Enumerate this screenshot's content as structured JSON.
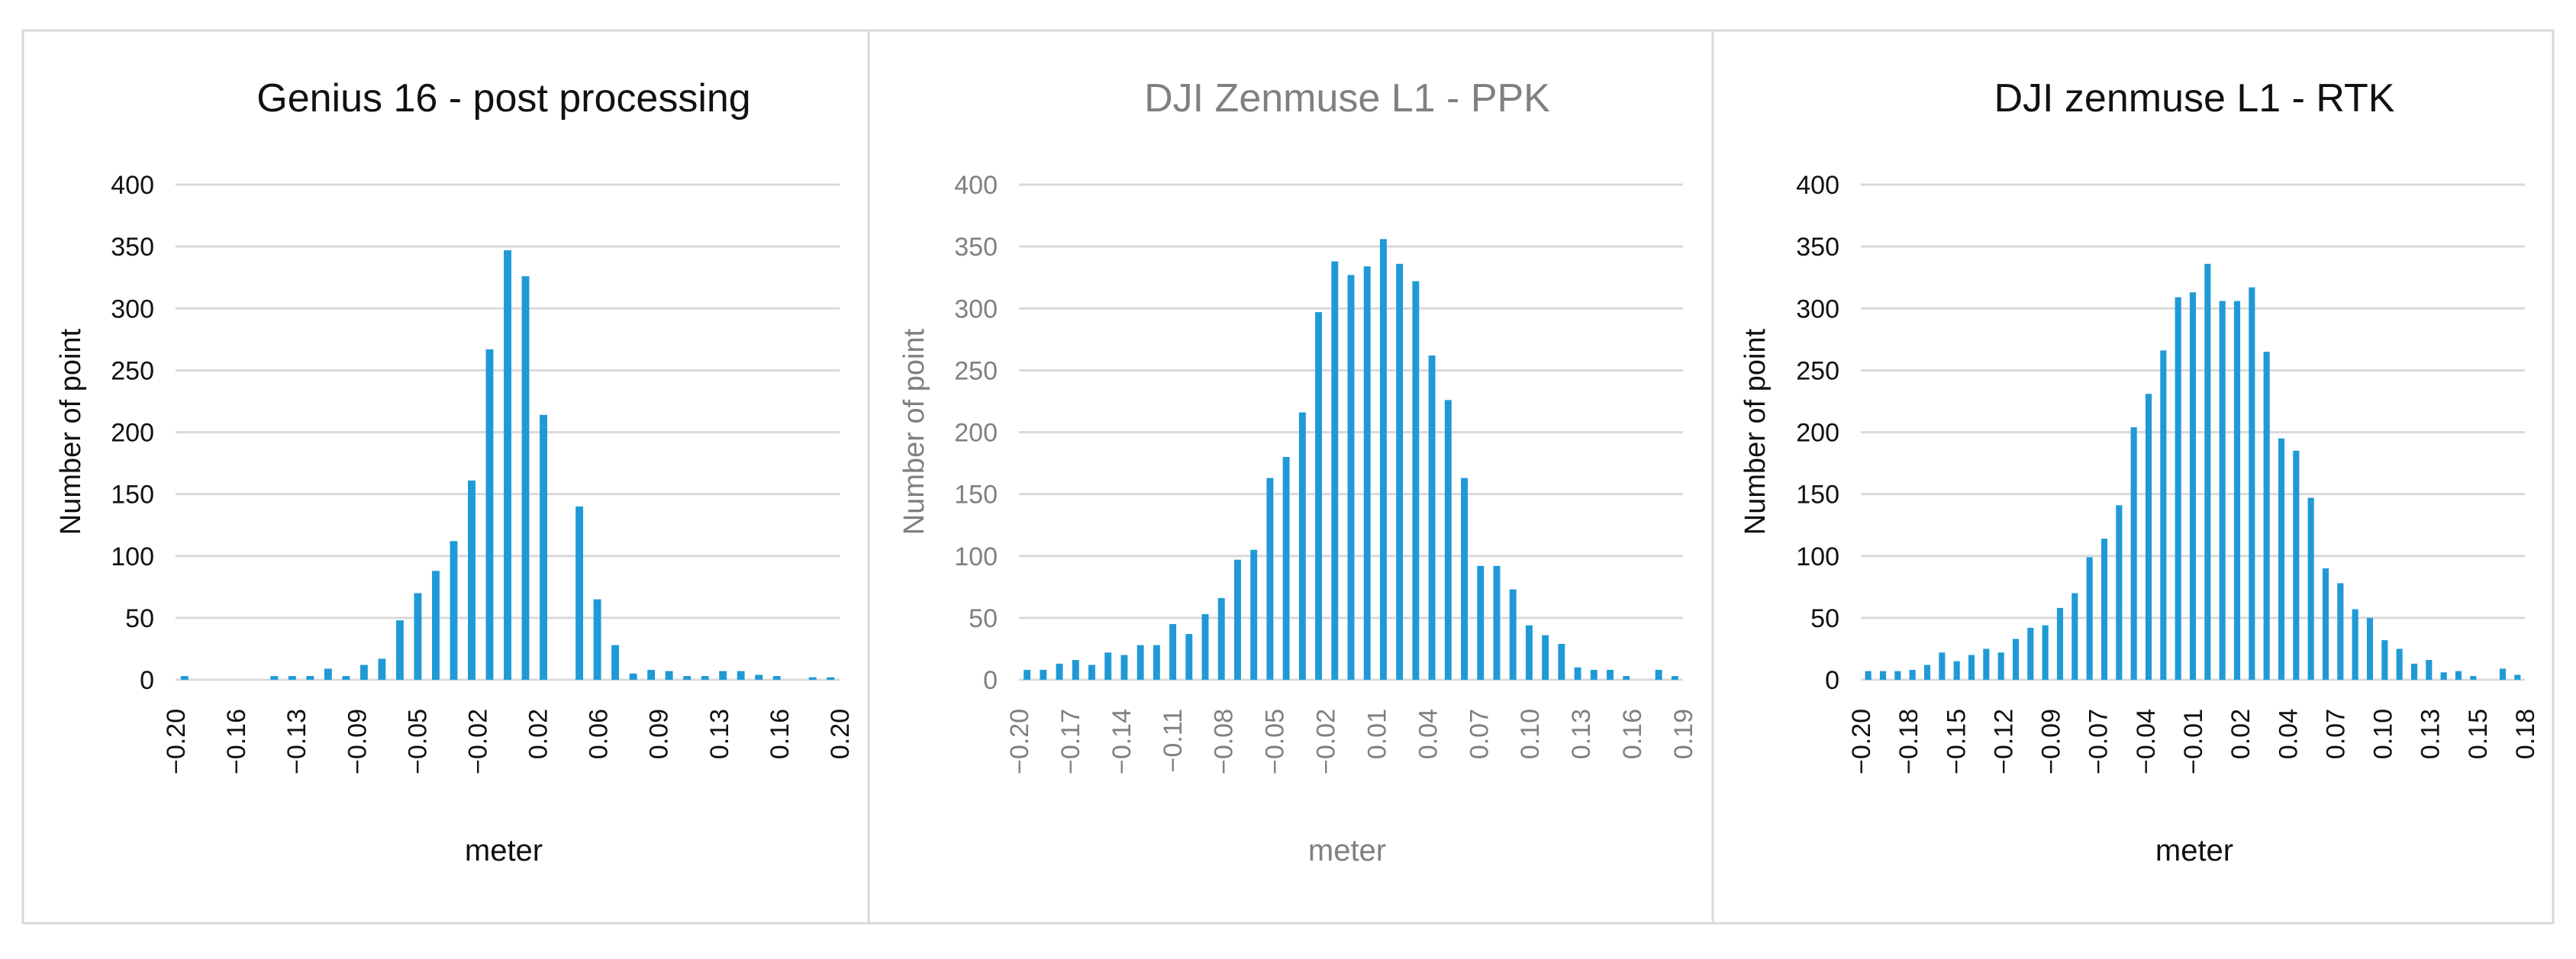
{
  "chart_data": [
    {
      "type": "bar",
      "title": "Genius 16 - post processing",
      "xlabel": "meter",
      "ylabel": "Number of point",
      "ylim": [
        0,
        400
      ],
      "yticks": [
        "0",
        "50",
        "100",
        "150",
        "200",
        "250",
        "300",
        "350",
        "400"
      ],
      "xtick_labels": [
        "−0.20",
        "−0.16",
        "−0.13",
        "−0.09",
        "−0.05",
        "−0.02",
        "0.02",
        "0.06",
        "0.09",
        "0.13",
        "0.16",
        "0.20"
      ],
      "values": [
        3,
        0,
        0,
        0,
        0,
        3,
        3,
        3,
        9,
        3,
        12,
        17,
        48,
        70,
        88,
        112,
        161,
        267,
        347,
        326,
        214,
        0,
        140,
        65,
        28,
        5,
        8,
        7,
        3,
        3,
        7,
        7,
        4,
        3,
        0,
        2,
        2
      ],
      "bar_color": "#1f9ad6",
      "title_color": "#111111",
      "label_color": "#111111",
      "grid": true
    },
    {
      "type": "bar",
      "title": "DJI Zenmuse L1 - PPK",
      "xlabel": "meter",
      "ylabel": "Number of point",
      "ylim": [
        0,
        400
      ],
      "yticks": [
        "0",
        "50",
        "100",
        "150",
        "200",
        "250",
        "300",
        "350",
        "400"
      ],
      "xtick_labels": [
        "−0.20",
        "−0.17",
        "−0.14",
        "−0.11",
        "−0.08",
        "−0.05",
        "−0.02",
        "0.01",
        "0.04",
        "0.07",
        "0.10",
        "0.13",
        "0.16",
        "0.19"
      ],
      "values": [
        8,
        8,
        13,
        16,
        12,
        22,
        20,
        28,
        28,
        45,
        37,
        53,
        66,
        97,
        105,
        163,
        180,
        216,
        297,
        338,
        327,
        334,
        356,
        336,
        322,
        262,
        226,
        163,
        92,
        92,
        73,
        44,
        36,
        29,
        10,
        8,
        8,
        3,
        0,
        8,
        3
      ],
      "bar_color": "#1f9ad6",
      "title_color": "#808080",
      "label_color": "#808080",
      "grid": true
    },
    {
      "type": "bar",
      "title": "DJI zenmuse  L1 - RTK",
      "xlabel": "meter",
      "ylabel": "Number of point",
      "ylim": [
        0,
        400
      ],
      "yticks": [
        "0",
        "50",
        "100",
        "150",
        "200",
        "250",
        "300",
        "350",
        "400"
      ],
      "xtick_labels": [
        "−0.20",
        "−0.18",
        "−0.15",
        "−0.12",
        "−0.09",
        "−0.07",
        "−0.04",
        "−0.01",
        "0.02",
        "0.04",
        "0.07",
        "0.10",
        "0.13",
        "0.15",
        "0.18"
      ],
      "values": [
        7,
        7,
        7,
        8,
        12,
        22,
        15,
        20,
        25,
        22,
        33,
        42,
        44,
        58,
        70,
        99,
        114,
        141,
        204,
        231,
        266,
        309,
        313,
        336,
        306,
        306,
        317,
        265,
        195,
        185,
        147,
        90,
        78,
        57,
        50,
        32,
        25,
        13,
        16,
        6,
        7,
        3,
        0,
        9,
        4
      ],
      "bar_color": "#1f9ad6",
      "title_color": "#111111",
      "label_color": "#111111",
      "grid": true
    }
  ]
}
